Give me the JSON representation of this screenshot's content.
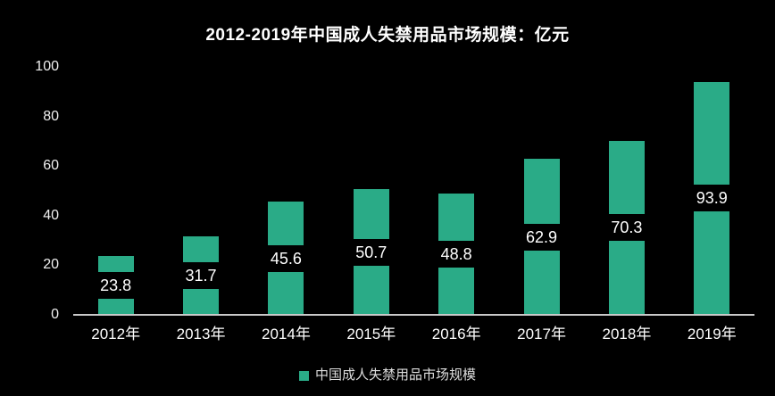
{
  "chart_data": {
    "type": "bar",
    "title": "2012-2019年中国成人失禁用品市场规模：亿元",
    "categories": [
      "2012年",
      "2013年",
      "2014年",
      "2015年",
      "2016年",
      "2017年",
      "2018年",
      "2019年"
    ],
    "values": [
      23.8,
      31.7,
      45.6,
      50.7,
      48.8,
      62.9,
      70.3,
      93.9
    ],
    "series_name": "中国成人失禁用品市场规模",
    "y_ticks": [
      "0",
      "20",
      "40",
      "60",
      "80",
      "100"
    ],
    "ylim": [
      0,
      100
    ],
    "xlabel": "",
    "ylabel": "",
    "grid": false,
    "legend_position": "bottom",
    "value_labels": "inside-center-on-black-band",
    "colors": {
      "bar": "#2aab87",
      "background": "#000000",
      "axis_line": "#c9c9c9",
      "tick_text": "#f0f0f0",
      "value_text": "#ffffff",
      "legend_text": "#dddddd"
    }
  }
}
